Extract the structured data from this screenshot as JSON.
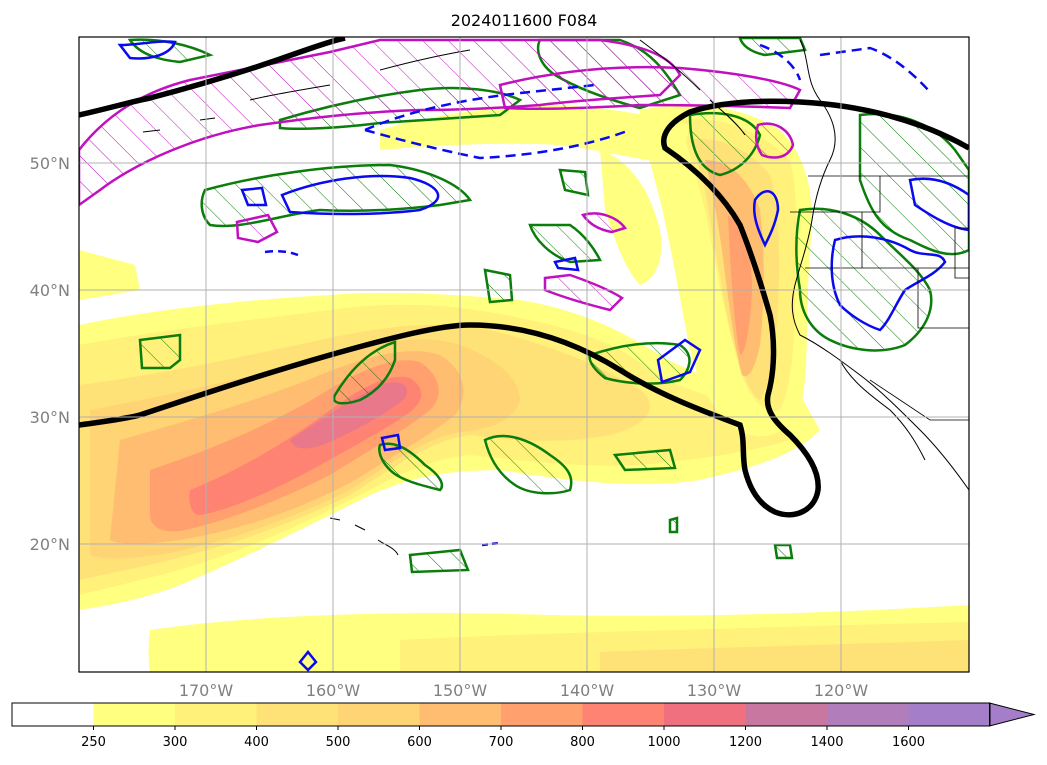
{
  "title": "2024011600 F084",
  "lat_labels": [
    "50°N",
    "40°N",
    "30°N",
    "20°N"
  ],
  "lon_labels": [
    "170°W",
    "160°W",
    "150°W",
    "140°W",
    "130°W",
    "120°W"
  ],
  "colorbar": {
    "ticks": [
      "250",
      "300",
      "400",
      "500",
      "600",
      "700",
      "800",
      "1000",
      "1200",
      "1400",
      "1600"
    ],
    "colors": [
      "#ffffff",
      "#ffff80",
      "#fff17a",
      "#ffe277",
      "#ffd474",
      "#ffbd71",
      "#ffa06e",
      "#ff8373",
      "#f07080",
      "#c878a0",
      "#b27dbb",
      "#a47ec8"
    ],
    "extend": "max"
  },
  "colors": {
    "ivt_low": "#ffff80",
    "ivt_mid": "#ffd474",
    "ivt_high": "#ff8373",
    "ivt_peak": "#d8708c",
    "jet_contour": "#000000",
    "green_contour": "#0a7d0a",
    "magenta_contour": "#c010c0",
    "blue_contour": "#0a0aee",
    "coast": "#000000",
    "grid": "#b0b0b0"
  }
}
